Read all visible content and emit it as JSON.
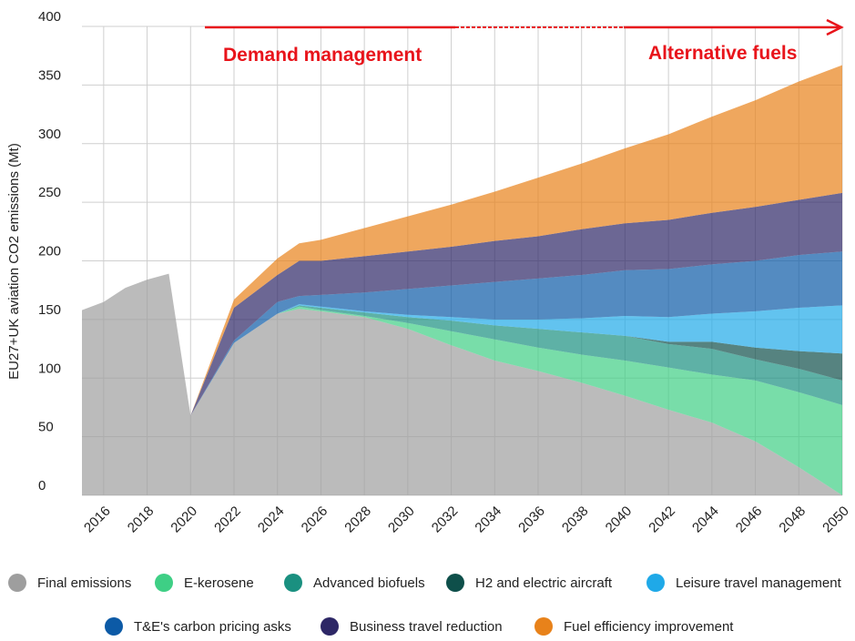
{
  "chart_data": {
    "type": "stacked_area",
    "ylabel": "EU27+UK aviation CO2 emissions (Mt)",
    "annotations": [
      "Demand management",
      "Alternative fuels"
    ],
    "x": [
      2015,
      2016,
      2017,
      2018,
      2019,
      2020,
      2022,
      2024,
      2025,
      2026,
      2028,
      2030,
      2032,
      2034,
      2036,
      2038,
      2040,
      2042,
      2044,
      2046,
      2048,
      2050
    ],
    "xlim": [
      2015,
      2050
    ],
    "xticks": [
      2016,
      2018,
      2020,
      2022,
      2024,
      2026,
      2028,
      2030,
      2032,
      2034,
      2036,
      2038,
      2040,
      2042,
      2044,
      2046,
      2048,
      2050
    ],
    "ylim": [
      0,
      400
    ],
    "yticks": [
      0,
      50,
      100,
      150,
      200,
      250,
      300,
      350,
      400
    ],
    "grid": true,
    "legend": "bottom",
    "series": [
      {
        "name": "Final emissions",
        "color": "#9e9e9e",
        "values": [
          158,
          165,
          177,
          184,
          189,
          68,
          130,
          155,
          159,
          157,
          152,
          142,
          128,
          115,
          106,
          96,
          85,
          73,
          62,
          46,
          24,
          0
        ]
      },
      {
        "name": "E-kerosene",
        "color": "#3ecf85",
        "values": [
          0,
          0,
          0,
          0,
          0,
          0,
          0,
          0,
          2,
          1,
          1,
          5,
          12,
          18,
          20,
          24,
          30,
          36,
          41,
          52,
          64,
          77
        ]
      },
      {
        "name": "Advanced biofuels",
        "color": "#1a9080",
        "values": [
          0,
          0,
          0,
          0,
          0,
          0,
          0,
          0,
          1,
          2,
          3,
          5,
          9,
          12,
          16,
          19,
          21,
          20,
          22,
          18,
          20,
          21
        ]
      },
      {
        "name": "H2 and electric aircraft",
        "color": "#0e4f4a",
        "values": [
          0,
          0,
          0,
          0,
          0,
          0,
          0,
          0,
          0,
          0,
          0,
          0,
          0,
          0,
          0,
          0,
          0,
          2,
          6,
          10,
          15,
          23
        ]
      },
      {
        "name": "Leisure travel management",
        "color": "#1fa9e8",
        "values": [
          0,
          0,
          0,
          0,
          0,
          0,
          0,
          0,
          1,
          1,
          1,
          2,
          3,
          5,
          8,
          12,
          17,
          21,
          24,
          31,
          37,
          41
        ]
      },
      {
        "name": "T&E's carbon pricing asks",
        "color": "#0c5aa6",
        "values": [
          0,
          0,
          0,
          0,
          0,
          0,
          2,
          10,
          7,
          10,
          16,
          22,
          27,
          32,
          35,
          37,
          39,
          41,
          42,
          43,
          45,
          46
        ]
      },
      {
        "name": "Business travel reduction",
        "color": "#2d2766",
        "values": [
          0,
          0,
          0,
          0,
          0,
          0,
          28,
          23,
          30,
          29,
          31,
          32,
          33,
          35,
          36,
          39,
          40,
          42,
          44,
          46,
          47,
          50
        ]
      },
      {
        "name": "Fuel efficiency improvement",
        "color": "#e8821a",
        "values": [
          0,
          0,
          0,
          0,
          0,
          0,
          7,
          14,
          15,
          18,
          24,
          30,
          36,
          42,
          50,
          56,
          64,
          73,
          82,
          91,
          101,
          109
        ]
      }
    ]
  }
}
